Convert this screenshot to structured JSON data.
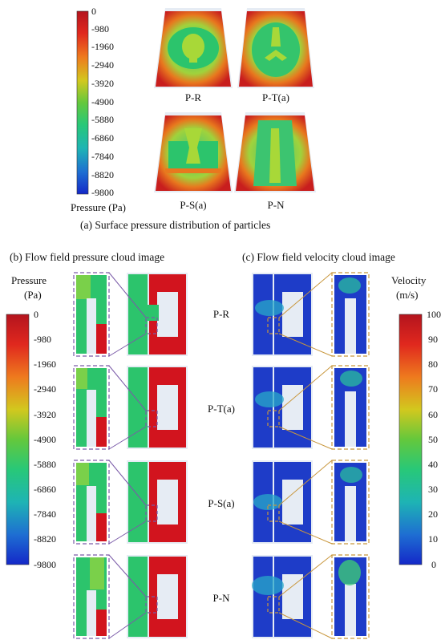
{
  "panel_a": {
    "caption": "(a) Surface pressure distribution of particles",
    "colorbar_title": "Pressure (Pa)",
    "ticks": [
      "0",
      "-980",
      "-1960",
      "-2940",
      "-3920",
      "-4900",
      "-5880",
      "-6860",
      "-7840",
      "-8820",
      "-9800"
    ],
    "labels": [
      "P-R",
      "P-T(a)",
      "P-S(a)",
      "P-N"
    ]
  },
  "panel_b": {
    "caption": "(b) Flow field pressure cloud image",
    "colorbar_title_line1": "Pressure",
    "colorbar_title_line2": "(Pa)",
    "ticks": [
      "0",
      "-980",
      "-1960",
      "-2940",
      "-3920",
      "-4900",
      "-5880",
      "-6860",
      "-7840",
      "-8820",
      "-9800"
    ]
  },
  "panel_c": {
    "caption": "(c) Flow field velocity cloud image",
    "colorbar_title_line1": "Velocity",
    "colorbar_title_line2": "(m/s)",
    "ticks": [
      "100",
      "90",
      "80",
      "70",
      "60",
      "50",
      "40",
      "30",
      "20",
      "10",
      "0"
    ]
  },
  "row_labels": [
    "P-R",
    "P-T(a)",
    "P-S(a)",
    "P-N"
  ],
  "colors": {
    "map_red": "#c8141e",
    "map_orange": "#e8641e",
    "map_yellow": "#c8d21e",
    "map_green": "#28c864",
    "map_cyan": "#1eb4c8",
    "map_blue": "#1432c8",
    "pressure_box": "#7a5aa8",
    "velocity_box": "#c8963c"
  }
}
